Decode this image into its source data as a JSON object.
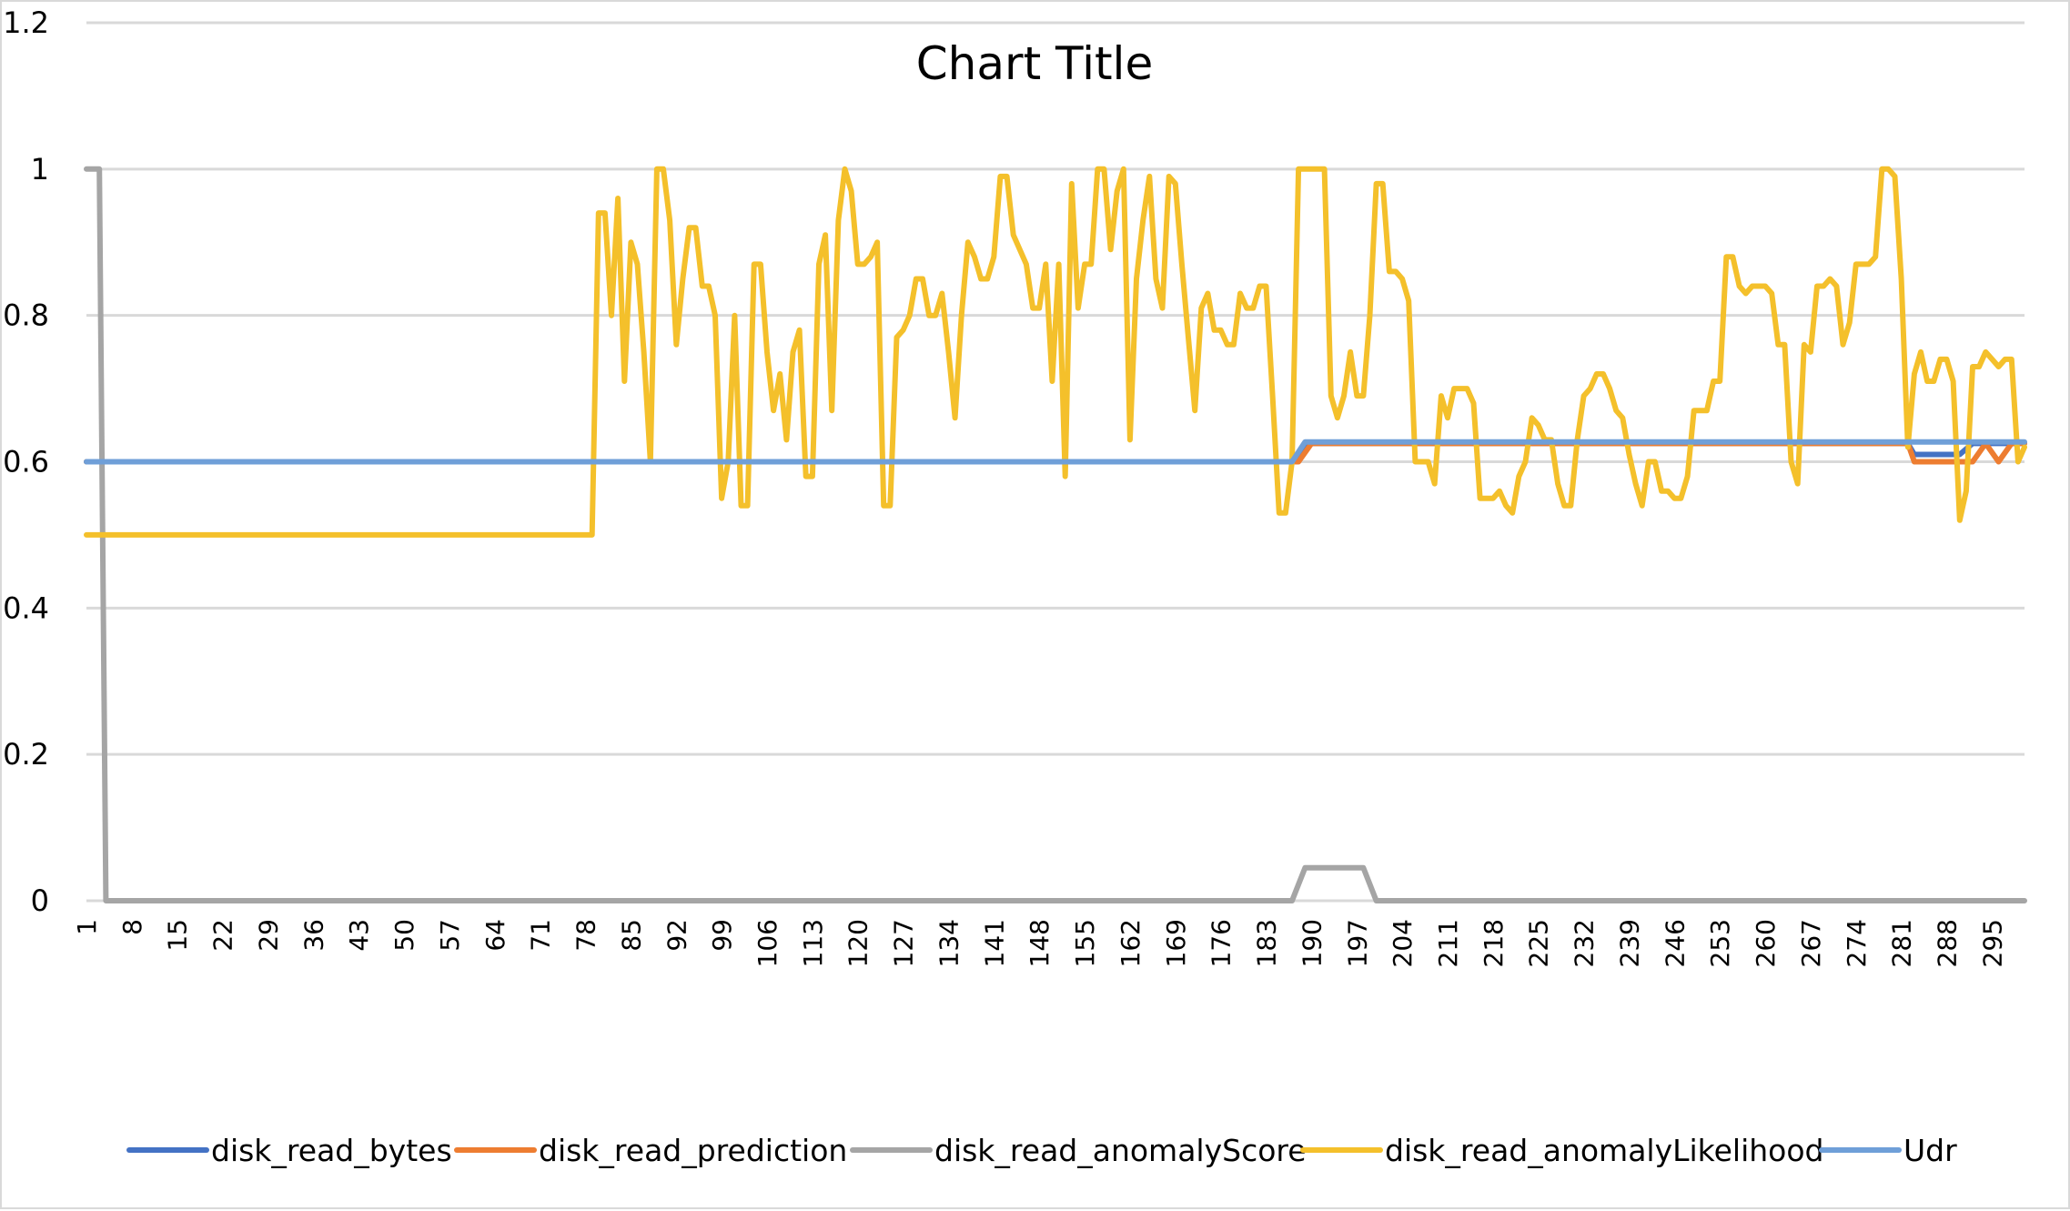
{
  "chart_data": {
    "type": "line",
    "title": "Chart Title",
    "xlabel": "",
    "ylabel": "",
    "ylim": [
      0,
      1.2
    ],
    "yticks": [
      "0",
      "0.2",
      "0.4",
      "0.6",
      "0.8",
      "1",
      "1.2"
    ],
    "x_range": [
      1,
      300
    ],
    "xtick_labels": [
      "1",
      "8",
      "15",
      "22",
      "29",
      "36",
      "43",
      "50",
      "57",
      "64",
      "71",
      "78",
      "85",
      "92",
      "99",
      "106",
      "113",
      "120",
      "127",
      "134",
      "141",
      "148",
      "155",
      "162",
      "169",
      "176",
      "183",
      "190",
      "197",
      "204",
      "211",
      "218",
      "225",
      "232",
      "239",
      "246",
      "253",
      "260",
      "267",
      "274",
      "281",
      "288",
      "295"
    ],
    "grid": "horizontal",
    "legend_position": "bottom",
    "series": [
      {
        "name": "disk_read_bytes",
        "color": "#4472c4",
        "points": [
          [
            1,
            0.6
          ],
          [
            187,
            0.6
          ],
          [
            189,
            0.625
          ],
          [
            282,
            0.625
          ],
          [
            283,
            0.61
          ],
          [
            290,
            0.61
          ],
          [
            292,
            0.625
          ],
          [
            300,
            0.625
          ]
        ]
      },
      {
        "name": "disk_read_prediction",
        "color": "#ed7d31",
        "points": [
          [
            1,
            0.6
          ],
          [
            188,
            0.6
          ],
          [
            190,
            0.625
          ],
          [
            282,
            0.625
          ],
          [
            283,
            0.6
          ],
          [
            292,
            0.6
          ],
          [
            294,
            0.625
          ],
          [
            296,
            0.6
          ],
          [
            298,
            0.625
          ],
          [
            300,
            0.625
          ]
        ]
      },
      {
        "name": "disk_read_anomalyScore",
        "color": "#a5a5a5",
        "points": [
          [
            1,
            1
          ],
          [
            3,
            1
          ],
          [
            4,
            0
          ],
          [
            187,
            0
          ],
          [
            189,
            0.045
          ],
          [
            198,
            0.045
          ],
          [
            200,
            0
          ],
          [
            300,
            0
          ]
        ]
      },
      {
        "name": "disk_read_anomalyLikelihood",
        "color": "#f4c02b",
        "points": [
          [
            1,
            0.5
          ],
          [
            79,
            0.5
          ],
          [
            80,
            0.94
          ],
          [
            81,
            0.94
          ],
          [
            82,
            0.8
          ],
          [
            83,
            0.96
          ],
          [
            84,
            0.71
          ],
          [
            85,
            0.9
          ],
          [
            86,
            0.87
          ],
          [
            87,
            0.75
          ],
          [
            88,
            0.6
          ],
          [
            89,
            1
          ],
          [
            90,
            1
          ],
          [
            91,
            0.93
          ],
          [
            92,
            0.76
          ],
          [
            93,
            0.85
          ],
          [
            94,
            0.92
          ],
          [
            95,
            0.92
          ],
          [
            96,
            0.84
          ],
          [
            97,
            0.84
          ],
          [
            98,
            0.8
          ],
          [
            99,
            0.55
          ],
          [
            100,
            0.6
          ],
          [
            101,
            0.8
          ],
          [
            102,
            0.54
          ],
          [
            103,
            0.54
          ],
          [
            104,
            0.87
          ],
          [
            105,
            0.87
          ],
          [
            106,
            0.75
          ],
          [
            107,
            0.67
          ],
          [
            108,
            0.72
          ],
          [
            109,
            0.63
          ],
          [
            110,
            0.75
          ],
          [
            111,
            0.78
          ],
          [
            112,
            0.58
          ],
          [
            113,
            0.58
          ],
          [
            114,
            0.87
          ],
          [
            115,
            0.91
          ],
          [
            116,
            0.67
          ],
          [
            117,
            0.93
          ],
          [
            118,
            1
          ],
          [
            119,
            0.97
          ],
          [
            120,
            0.87
          ],
          [
            121,
            0.87
          ],
          [
            122,
            0.88
          ],
          [
            123,
            0.9
          ],
          [
            124,
            0.54
          ],
          [
            125,
            0.54
          ],
          [
            126,
            0.77
          ],
          [
            127,
            0.78
          ],
          [
            128,
            0.8
          ],
          [
            129,
            0.85
          ],
          [
            130,
            0.85
          ],
          [
            131,
            0.8
          ],
          [
            132,
            0.8
          ],
          [
            133,
            0.83
          ],
          [
            134,
            0.75
          ],
          [
            135,
            0.66
          ],
          [
            136,
            0.8
          ],
          [
            137,
            0.9
          ],
          [
            138,
            0.88
          ],
          [
            139,
            0.85
          ],
          [
            140,
            0.85
          ],
          [
            141,
            0.88
          ],
          [
            142,
            0.99
          ],
          [
            143,
            0.99
          ],
          [
            144,
            0.91
          ],
          [
            145,
            0.89
          ],
          [
            146,
            0.87
          ],
          [
            147,
            0.81
          ],
          [
            148,
            0.81
          ],
          [
            149,
            0.87
          ],
          [
            150,
            0.71
          ],
          [
            151,
            0.87
          ],
          [
            152,
            0.58
          ],
          [
            153,
            0.98
          ],
          [
            154,
            0.81
          ],
          [
            155,
            0.87
          ],
          [
            156,
            0.87
          ],
          [
            157,
            1
          ],
          [
            158,
            1
          ],
          [
            159,
            0.89
          ],
          [
            160,
            0.97
          ],
          [
            161,
            1
          ],
          [
            162,
            0.63
          ],
          [
            163,
            0.85
          ],
          [
            164,
            0.93
          ],
          [
            165,
            0.99
          ],
          [
            166,
            0.85
          ],
          [
            167,
            0.81
          ],
          [
            168,
            0.99
          ],
          [
            169,
            0.98
          ],
          [
            170,
            0.87
          ],
          [
            171,
            0.77
          ],
          [
            172,
            0.67
          ],
          [
            173,
            0.81
          ],
          [
            174,
            0.83
          ],
          [
            175,
            0.78
          ],
          [
            176,
            0.78
          ],
          [
            177,
            0.76
          ],
          [
            178,
            0.76
          ],
          [
            179,
            0.83
          ],
          [
            180,
            0.81
          ],
          [
            181,
            0.81
          ],
          [
            182,
            0.84
          ],
          [
            183,
            0.84
          ],
          [
            184,
            0.69
          ],
          [
            185,
            0.53
          ],
          [
            186,
            0.53
          ],
          [
            187,
            0.6
          ],
          [
            188,
            1
          ],
          [
            189,
            1
          ],
          [
            190,
            1
          ],
          [
            191,
            1
          ],
          [
            192,
            1
          ],
          [
            193,
            0.69
          ],
          [
            194,
            0.66
          ],
          [
            195,
            0.69
          ],
          [
            196,
            0.75
          ],
          [
            197,
            0.69
          ],
          [
            198,
            0.69
          ],
          [
            199,
            0.8
          ],
          [
            200,
            0.98
          ],
          [
            201,
            0.98
          ],
          [
            202,
            0.86
          ],
          [
            203,
            0.86
          ],
          [
            204,
            0.85
          ],
          [
            205,
            0.82
          ],
          [
            206,
            0.6
          ],
          [
            207,
            0.6
          ],
          [
            208,
            0.6
          ],
          [
            209,
            0.57
          ],
          [
            210,
            0.69
          ],
          [
            211,
            0.66
          ],
          [
            212,
            0.7
          ],
          [
            213,
            0.7
          ],
          [
            214,
            0.7
          ],
          [
            215,
            0.68
          ],
          [
            216,
            0.55
          ],
          [
            217,
            0.55
          ],
          [
            218,
            0.55
          ],
          [
            219,
            0.56
          ],
          [
            220,
            0.54
          ],
          [
            221,
            0.53
          ],
          [
            222,
            0.58
          ],
          [
            223,
            0.6
          ],
          [
            224,
            0.66
          ],
          [
            225,
            0.65
          ],
          [
            226,
            0.63
          ],
          [
            227,
            0.63
          ],
          [
            228,
            0.57
          ],
          [
            229,
            0.54
          ],
          [
            230,
            0.54
          ],
          [
            231,
            0.63
          ],
          [
            232,
            0.69
          ],
          [
            233,
            0.7
          ],
          [
            234,
            0.72
          ],
          [
            235,
            0.72
          ],
          [
            236,
            0.7
          ],
          [
            237,
            0.67
          ],
          [
            238,
            0.66
          ],
          [
            239,
            0.61
          ],
          [
            240,
            0.57
          ],
          [
            241,
            0.54
          ],
          [
            242,
            0.6
          ],
          [
            243,
            0.6
          ],
          [
            244,
            0.56
          ],
          [
            245,
            0.56
          ],
          [
            246,
            0.55
          ],
          [
            247,
            0.55
          ],
          [
            248,
            0.58
          ],
          [
            249,
            0.67
          ],
          [
            250,
            0.67
          ],
          [
            251,
            0.67
          ],
          [
            252,
            0.71
          ],
          [
            253,
            0.71
          ],
          [
            254,
            0.88
          ],
          [
            255,
            0.88
          ],
          [
            256,
            0.84
          ],
          [
            257,
            0.83
          ],
          [
            258,
            0.84
          ],
          [
            259,
            0.84
          ],
          [
            260,
            0.84
          ],
          [
            261,
            0.83
          ],
          [
            262,
            0.76
          ],
          [
            263,
            0.76
          ],
          [
            264,
            0.6
          ],
          [
            265,
            0.57
          ],
          [
            266,
            0.76
          ],
          [
            267,
            0.75
          ],
          [
            268,
            0.84
          ],
          [
            269,
            0.84
          ],
          [
            270,
            0.85
          ],
          [
            271,
            0.84
          ],
          [
            272,
            0.76
          ],
          [
            273,
            0.79
          ],
          [
            274,
            0.87
          ],
          [
            275,
            0.87
          ],
          [
            276,
            0.87
          ],
          [
            277,
            0.88
          ],
          [
            278,
            1
          ],
          [
            279,
            1
          ],
          [
            280,
            0.99
          ],
          [
            281,
            0.85
          ],
          [
            282,
            0.62
          ],
          [
            283,
            0.72
          ],
          [
            284,
            0.75
          ],
          [
            285,
            0.71
          ],
          [
            286,
            0.71
          ],
          [
            287,
            0.74
          ],
          [
            288,
            0.74
          ],
          [
            289,
            0.71
          ],
          [
            290,
            0.52
          ],
          [
            291,
            0.56
          ],
          [
            292,
            0.73
          ],
          [
            293,
            0.73
          ],
          [
            294,
            0.75
          ],
          [
            295,
            0.74
          ],
          [
            296,
            0.73
          ],
          [
            297,
            0.74
          ],
          [
            298,
            0.74
          ],
          [
            299,
            0.6
          ],
          [
            300,
            0.62
          ]
        ]
      },
      {
        "name": "Udr",
        "color": "#6f9fd8",
        "points": [
          [
            1,
            0.6
          ],
          [
            187,
            0.6
          ],
          [
            189,
            0.627
          ],
          [
            300,
            0.627
          ]
        ]
      }
    ]
  }
}
